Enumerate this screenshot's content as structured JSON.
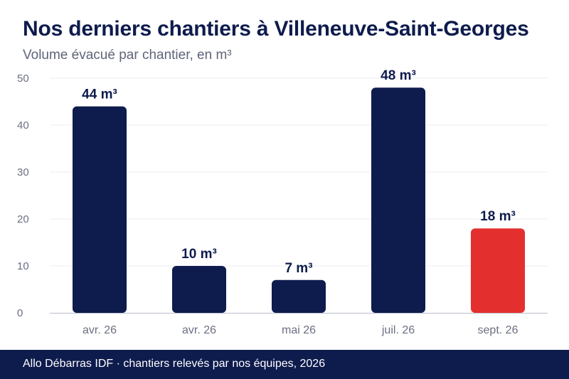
{
  "title": "Nos derniers chantiers à Villeneuve-Saint-Georges",
  "subtitle": "Volume évacué par chantier, en m³",
  "footer": "Allo Débarras IDF · chantiers relevés par nos équipes, 2026",
  "colors": {
    "bar": "#0e1b4d",
    "highlight": "#e3302e",
    "grid": "#eceef3",
    "axis": "#c5c8d6",
    "tick_text": "#6b6f82",
    "label_text": "#0e1b4d"
  },
  "chart_data": {
    "type": "bar",
    "categories": [
      "avr. 26",
      "avr. 26",
      "mai 26",
      "juil. 26",
      "sept. 26"
    ],
    "values": [
      44,
      10,
      7,
      48,
      18
    ],
    "value_labels": [
      "44 m³",
      "10 m³",
      "7 m³",
      "48 m³",
      "18 m³"
    ],
    "highlight_index": 4,
    "ylim": [
      0,
      50
    ],
    "yticks": [
      0,
      10,
      20,
      30,
      40,
      50
    ],
    "grid": true,
    "legend": "none"
  }
}
